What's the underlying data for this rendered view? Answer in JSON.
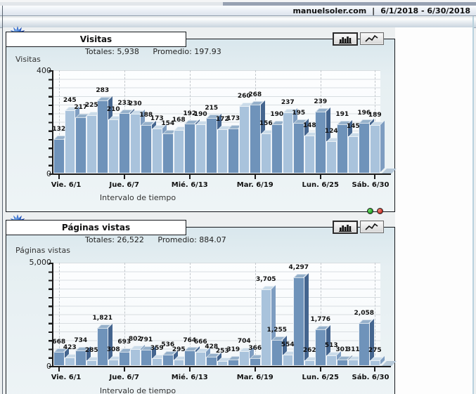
{
  "header": {
    "site": "manuelsoler.com",
    "separator": "|",
    "date_range": "6/1/2018 - 6/30/2018"
  },
  "chart_data": [
    {
      "type": "bar",
      "title": "Visitas",
      "totals_text": "Totales: 5,938",
      "promedio_text": "Promedio: 197.93",
      "ylabel": "Visitas",
      "xlabel": "Intervalo de tiempo",
      "ymax_label": "400",
      "ymin_label": "0",
      "ylim": [
        0,
        400
      ],
      "grid": true,
      "legend": "none",
      "x_tick_labels": [
        "Vie. 6/1",
        "Jue. 6/7",
        "Mié. 6/13",
        "Mar. 6/19",
        "Lun. 6/25",
        "Sáb. 6/30"
      ],
      "x_tick_days": [
        0,
        6,
        12,
        18,
        24,
        29
      ],
      "values": [
        132,
        245,
        217,
        225,
        283,
        210,
        233,
        230,
        188,
        173,
        154,
        168,
        192,
        190,
        215,
        172,
        173,
        260,
        268,
        156,
        190,
        237,
        195,
        148,
        239,
        124,
        191,
        145,
        196,
        189
      ],
      "value_labels": [
        "132",
        "245",
        "217",
        "225",
        "283",
        "210",
        "233",
        "230",
        "188",
        "173",
        "154",
        "168",
        "192",
        "190",
        "215",
        "172",
        "173",
        "260",
        "268",
        "156",
        "190",
        "237",
        "195",
        "148",
        "239",
        "124",
        "191",
        "145",
        "196",
        "189"
      ]
    },
    {
      "type": "bar",
      "title": "Páginas vistas",
      "totals_text": "Totales: 26,522",
      "promedio_text": "Promedio: 884.07",
      "ylabel": "Páginas vistas",
      "xlabel": "Intervalo de tiempo",
      "ymax_label": "5,000",
      "ymin_label": "0",
      "ylim": [
        0,
        5000
      ],
      "grid": true,
      "legend": "none",
      "x_tick_labels": [
        "Vie. 6/1",
        "Jue. 6/7",
        "Mié. 6/13",
        "Mar. 6/19",
        "Lun. 6/25",
        "Sáb. 6/30"
      ],
      "x_tick_days": [
        0,
        6,
        12,
        18,
        24,
        29
      ],
      "values": [
        668,
        423,
        734,
        285,
        1821,
        308,
        693,
        802,
        791,
        359,
        536,
        295,
        764,
        666,
        428,
        253,
        319,
        704,
        366,
        3705,
        1255,
        554,
        4297,
        262,
        1776,
        513,
        301,
        311,
        2058,
        275
      ],
      "value_labels": [
        "668",
        "423",
        "734",
        "285",
        "1,821",
        "308",
        "693",
        "802",
        "791",
        "359",
        "536",
        "295",
        "764",
        "666",
        "428",
        "253",
        "319",
        "704",
        "366",
        "3,705",
        "1,255",
        "554",
        "4,297",
        "262",
        "1,776",
        "513",
        "301",
        "311",
        "2,058",
        "275"
      ]
    }
  ],
  "colors": {
    "bar_front_dark": "#6f93ba",
    "bar_front_light": "#a9c3dc",
    "bar_top_dark": "#96b1cb",
    "bar_top_light": "#cadbe9",
    "bar_side_dark": "#44658f",
    "bar_side_light": "#7e9dc1",
    "floor_edge": "#b6c8d8",
    "dot_green": "#1f9a1f",
    "dot_red": "#c22a22"
  }
}
